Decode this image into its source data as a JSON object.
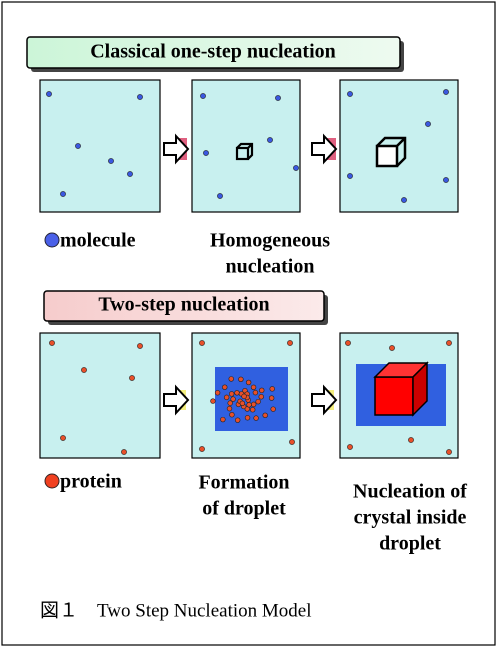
{
  "sections": [
    {
      "title": "Classical one-step nucleation",
      "legend": "molecule",
      "stages": [
        {
          "lines": [
            "Homogeneous",
            "nucleation"
          ]
        }
      ]
    },
    {
      "title": "Two-step nucleation",
      "legend": "protein",
      "stages": [
        {
          "lines": [
            "Formation",
            "of droplet"
          ]
        },
        {
          "lines": [
            "Nucleation of",
            "crystal inside",
            "droplet"
          ]
        }
      ]
    }
  ],
  "caption": "図１　Two Step Nucleation Model"
}
